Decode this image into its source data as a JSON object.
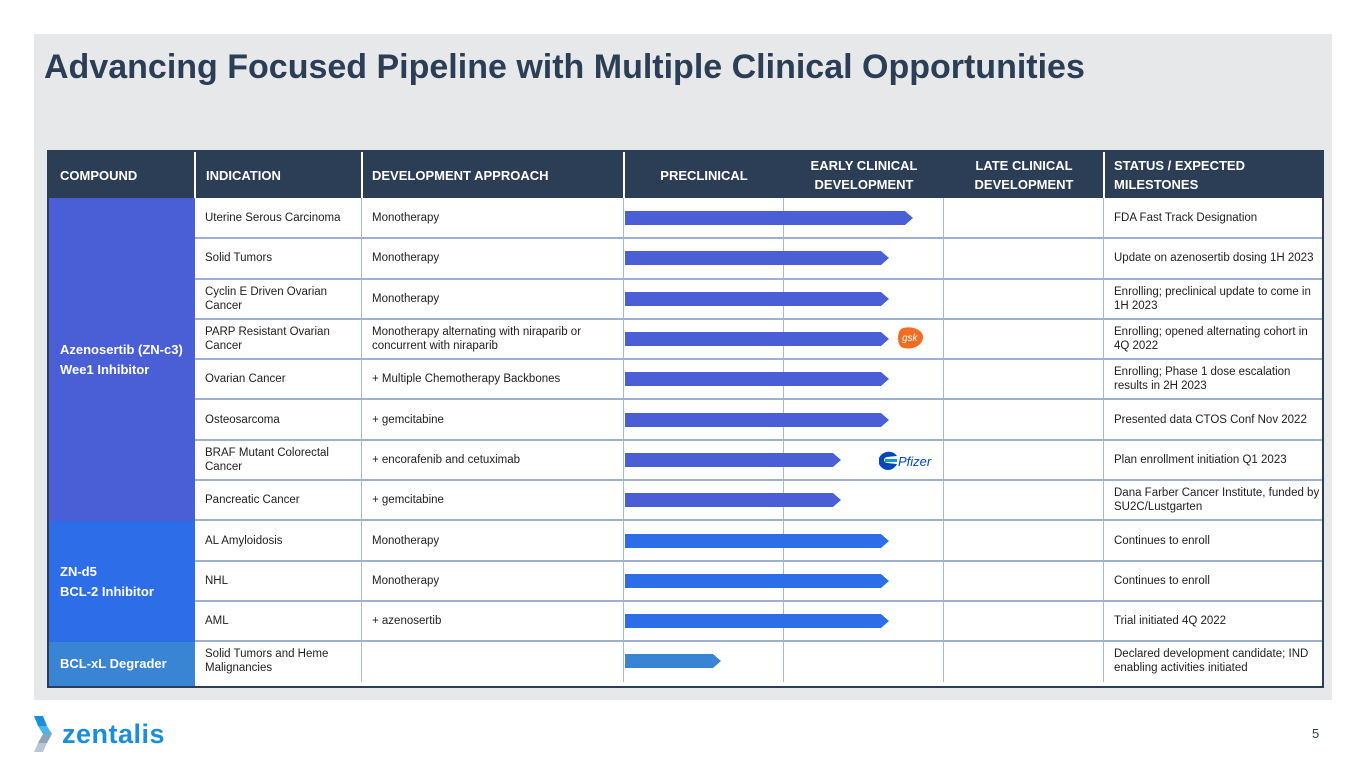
{
  "title": "Advancing Focused Pipeline with Multiple Clinical Opportunities",
  "header": {
    "compound": "COMPOUND",
    "indication": "INDICATION",
    "approach": "DEVELOPMENT APPROACH",
    "preclinical": "PRECLINICAL",
    "early_line1": "EARLY CLINICAL",
    "early_line2": "DEVELOPMENT",
    "late_line1": "LATE CLINICAL",
    "late_line2": "DEVELOPMENT",
    "status_line1": "STATUS / EXPECTED",
    "status_line2": "MILESTONES"
  },
  "compounds": [
    {
      "line1": "Azenosertib (ZN-c3)",
      "line2": "Wee1 Inhibitor",
      "color": "#4a5fd5"
    },
    {
      "line1": "ZN-d5",
      "line2": "BCL-2 Inhibitor",
      "color": "#2d6ee8"
    },
    {
      "line1": "BCL-xL Degrader",
      "line2": "",
      "color": "#3a84d4"
    }
  ],
  "rows": [
    {
      "indication": "Uterine Serous Carcinoma",
      "approach": "Monotherapy",
      "status": "FDA Fast Track Designation",
      "progress": 0.6
    },
    {
      "indication": "Solid Tumors",
      "approach": "Monotherapy",
      "status": "Update on azenosertib dosing 1H 2023",
      "progress": 0.55
    },
    {
      "indication": "Cyclin E Driven Ovarian Cancer",
      "approach": "Monotherapy",
      "status": "Enrolling; preclinical update to come in 1H 2023",
      "progress": 0.55
    },
    {
      "indication": "PARP Resistant Ovarian Cancer",
      "approach": "Monotherapy alternating with niraparib or concurrent with niraparib",
      "status": "Enrolling; opened alternating cohort in 4Q 2022",
      "progress": 0.55,
      "partner": "gsk"
    },
    {
      "indication": "Ovarian Cancer",
      "approach": "+ Multiple Chemotherapy Backbones",
      "status": "Enrolling; Phase 1 dose escalation results in 2H 2023",
      "progress": 0.55
    },
    {
      "indication": "Osteosarcoma",
      "approach": "+ gemcitabine",
      "status": "Presented data CTOS Conf Nov 2022",
      "progress": 0.55
    },
    {
      "indication": "BRAF Mutant Colorectal Cancer",
      "approach": "+ encorafenib and cetuximab",
      "status": "Plan enrollment initiation Q1 2023",
      "progress": 0.45,
      "partner": "Pfizer"
    },
    {
      "indication": "Pancreatic Cancer",
      "approach": "+ gemcitabine",
      "status": "Dana Farber Cancer Institute, funded by SU2C/Lustgarten",
      "progress": 0.45
    },
    {
      "indication": "AL Amyloidosis",
      "approach": "Monotherapy",
      "status": "Continues to enroll",
      "progress": 0.55
    },
    {
      "indication": "NHL",
      "approach": "Monotherapy",
      "status": "Continues to enroll",
      "progress": 0.55
    },
    {
      "indication": "AML",
      "approach": "+ azenosertib",
      "status": "Trial initiated 4Q 2022",
      "progress": 0.55
    },
    {
      "indication": "Solid Tumors and Heme Malignancies",
      "approach": "",
      "status": "Declared development candidate; IND enabling activities initiated",
      "progress": 0.2
    }
  ],
  "colors": {
    "azenosertib_bar": "#4a5fd5",
    "znd5_bar": "#2d6ee8",
    "bclxl_bar": "#3a84d4",
    "header": "#2c3e55"
  },
  "footer": {
    "logo_text": "zentalis",
    "page_number": "5"
  }
}
